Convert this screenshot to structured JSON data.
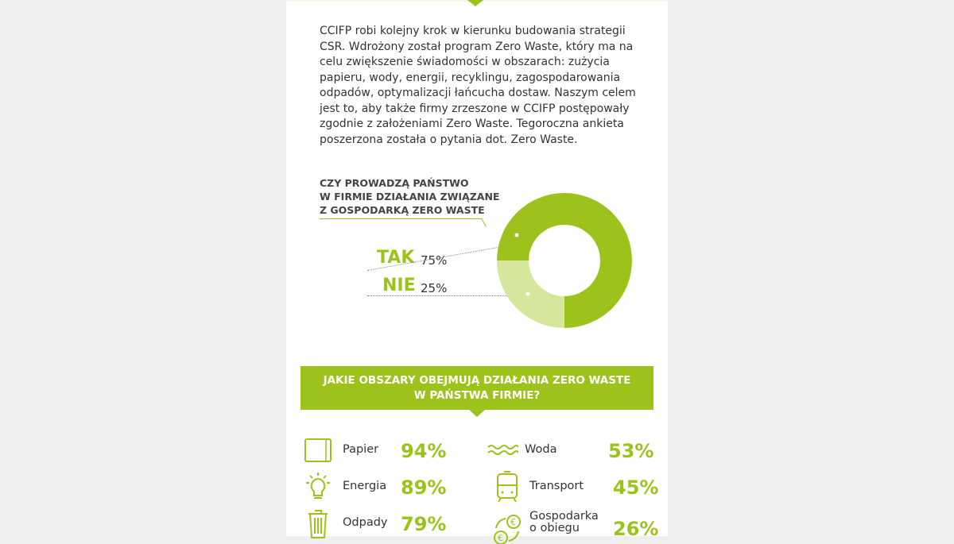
{
  "intro": "CCIFP robi kolejny krok w kierunku budowania strategii CSR. Wdrożony został program Zero Waste, który ma na celu zwiększenie świadomości w obszarach: zużycia papieru, wody, energii, recyklingu, zagospodarowania odpadów, optymalizacji łańcucha dostaw. Naszym celem jest to, aby także firmy zrzeszone w CCIFP postępowały zgodnie z założeniami Zero Waste. Tegoroczna ankieta poszerzona została o pytania dot. Zero Waste.",
  "question1": {
    "line1": "CZY PROWADZĄ PAŃSTWO",
    "line2": "W FIRMIE DZIAŁANIA ZWIĄZANE",
    "line3": "Z GOSPODARKĄ ZERO WASTE"
  },
  "chart_data": {
    "type": "pie",
    "categories": [
      "TAK",
      "NIE"
    ],
    "values": [
      75,
      25
    ],
    "labels": [
      "75%",
      "25%"
    ],
    "colors": [
      "#9cc31b",
      "#d6e69c"
    ]
  },
  "question2": {
    "line1": "JAKIE OBSZARY OBEJMUJĄ DZIAŁANIA ZERO WASTE",
    "line2": "W PAŃSTWA FIRMIE?"
  },
  "areas": [
    {
      "name": "Papier",
      "value": "94%",
      "icon": "paper-icon"
    },
    {
      "name": "Energia",
      "value": "89%",
      "icon": "lightbulb-icon"
    },
    {
      "name": "Odpady",
      "value": "79%",
      "icon": "trash-icon"
    },
    {
      "name": "Woda",
      "value": "53%",
      "icon": "water-icon"
    },
    {
      "name": "Transport",
      "value": "45%",
      "icon": "train-icon"
    },
    {
      "name": "Gospodarka o obiegu",
      "value": "26%",
      "icon": "circular-economy-icon"
    }
  ]
}
